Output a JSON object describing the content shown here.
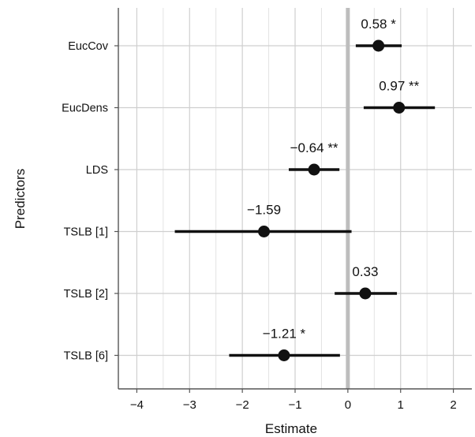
{
  "chart_data": {
    "type": "forest",
    "xlabel": "Estimate",
    "ylabel": "Predictors",
    "xlim": [
      -4.35,
      2.35
    ],
    "xticks": [
      -4,
      -3,
      -2,
      -1,
      0,
      1,
      2
    ],
    "xtick_labels": [
      "−4",
      "−3",
      "−2",
      "−1",
      "0",
      "1",
      "2"
    ],
    "grid": true,
    "reference_line": 0,
    "predictors": [
      {
        "name": "EucCov",
        "estimate": 0.58,
        "ci": [
          0.15,
          1.02
        ],
        "label": "0.58 *"
      },
      {
        "name": "EucDens",
        "estimate": 0.97,
        "ci": [
          0.3,
          1.65
        ],
        "label": "0.97 **"
      },
      {
        "name": "LDS",
        "estimate": -0.64,
        "ci": [
          -1.12,
          -0.16
        ],
        "label": "−0.64 **"
      },
      {
        "name": "TSLB [1]",
        "estimate": -1.59,
        "ci": [
          -3.28,
          0.07
        ],
        "label": "−1.59"
      },
      {
        "name": "TSLB [2]",
        "estimate": 0.33,
        "ci": [
          -0.25,
          0.93
        ],
        "label": "0.33"
      },
      {
        "name": "TSLB [6]",
        "estimate": -1.21,
        "ci": [
          -2.25,
          -0.15
        ],
        "label": "−1.21 *"
      }
    ]
  }
}
